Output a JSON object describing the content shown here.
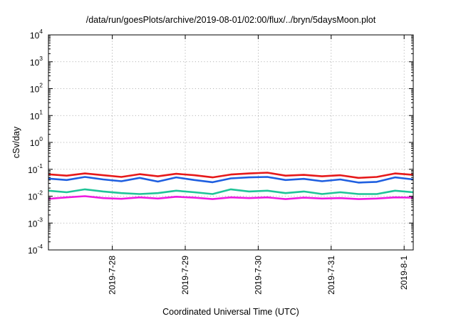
{
  "chart_data": {
    "type": "line",
    "title": "/data/run/goesPlots/archive/2019-08-01/02:00/flux/../bryn/5daysMoon.plot",
    "xlabel": "Coordinated Universal Time (UTC)",
    "ylabel": "cSv/day",
    "yscale": "log",
    "ylim": [
      0.0001,
      10000
    ],
    "xlim": [
      "2019-07-27 03:00",
      "2019-08-01 03:00"
    ],
    "grid": true,
    "legend": "none",
    "y_ticks": [
      {
        "value": 0.0001,
        "base": "10",
        "exp": "-4"
      },
      {
        "value": 0.001,
        "base": "10",
        "exp": "-3"
      },
      {
        "value": 0.01,
        "base": "10",
        "exp": "-2"
      },
      {
        "value": 0.1,
        "base": "10",
        "exp": "-1"
      },
      {
        "value": 1,
        "base": "10",
        "exp": "0"
      },
      {
        "value": 10,
        "base": "10",
        "exp": "1"
      },
      {
        "value": 100,
        "base": "10",
        "exp": "2"
      },
      {
        "value": 1000,
        "base": "10",
        "exp": "3"
      },
      {
        "value": 10000,
        "base": "10",
        "exp": "4"
      }
    ],
    "x_ticks": [
      {
        "value": "2019-07-28 00:00",
        "label": "2019-7-28"
      },
      {
        "value": "2019-07-29 00:00",
        "label": "2019-7-29"
      },
      {
        "value": "2019-07-30 00:00",
        "label": "2019-7-30"
      },
      {
        "value": "2019-07-31 00:00",
        "label": "2019-7-31"
      },
      {
        "value": "2019-08-01 00:00",
        "label": "2019-8-1"
      }
    ],
    "series": [
      {
        "color": "#e6191a",
        "x": [
          "2019-07-27 03:00",
          "2019-07-27 09:00",
          "2019-07-27 15:00",
          "2019-07-27 21:00",
          "2019-07-28 03:00",
          "2019-07-28 09:00",
          "2019-07-28 15:00",
          "2019-07-28 21:00",
          "2019-07-29 03:00",
          "2019-07-29 09:00",
          "2019-07-29 15:00",
          "2019-07-29 21:00",
          "2019-07-30 03:00",
          "2019-07-30 09:00",
          "2019-07-30 15:00",
          "2019-07-30 21:00",
          "2019-07-31 03:00",
          "2019-07-31 09:00",
          "2019-07-31 15:00",
          "2019-07-31 21:00",
          "2019-08-01 03:00"
        ],
        "values": [
          0.065,
          0.058,
          0.07,
          0.06,
          0.052,
          0.066,
          0.055,
          0.068,
          0.06,
          0.05,
          0.064,
          0.07,
          0.075,
          0.058,
          0.062,
          0.055,
          0.06,
          0.048,
          0.052,
          0.07,
          0.062
        ]
      },
      {
        "color": "#1f5fe0",
        "x": [
          "2019-07-27 03:00",
          "2019-07-27 09:00",
          "2019-07-27 15:00",
          "2019-07-27 21:00",
          "2019-07-28 03:00",
          "2019-07-28 09:00",
          "2019-07-28 15:00",
          "2019-07-28 21:00",
          "2019-07-29 03:00",
          "2019-07-29 09:00",
          "2019-07-29 15:00",
          "2019-07-29 21:00",
          "2019-07-30 03:00",
          "2019-07-30 09:00",
          "2019-07-30 15:00",
          "2019-07-30 21:00",
          "2019-07-31 03:00",
          "2019-07-31 09:00",
          "2019-07-31 15:00",
          "2019-07-31 21:00",
          "2019-08-01 03:00"
        ],
        "values": [
          0.045,
          0.04,
          0.052,
          0.042,
          0.036,
          0.048,
          0.035,
          0.05,
          0.04,
          0.033,
          0.046,
          0.05,
          0.052,
          0.04,
          0.044,
          0.036,
          0.042,
          0.032,
          0.034,
          0.05,
          0.042
        ]
      },
      {
        "color": "#1fc497",
        "x": [
          "2019-07-27 03:00",
          "2019-07-27 09:00",
          "2019-07-27 15:00",
          "2019-07-27 21:00",
          "2019-07-28 03:00",
          "2019-07-28 09:00",
          "2019-07-28 15:00",
          "2019-07-28 21:00",
          "2019-07-29 03:00",
          "2019-07-29 09:00",
          "2019-07-29 15:00",
          "2019-07-29 21:00",
          "2019-07-30 03:00",
          "2019-07-30 09:00",
          "2019-07-30 15:00",
          "2019-07-30 21:00",
          "2019-07-31 03:00",
          "2019-07-31 09:00",
          "2019-07-31 15:00",
          "2019-07-31 21:00",
          "2019-08-01 03:00"
        ],
        "values": [
          0.016,
          0.014,
          0.018,
          0.015,
          0.013,
          0.012,
          0.013,
          0.016,
          0.014,
          0.012,
          0.018,
          0.015,
          0.016,
          0.013,
          0.015,
          0.012,
          0.014,
          0.012,
          0.012,
          0.016,
          0.014
        ]
      },
      {
        "color": "#ee1ce0",
        "x": [
          "2019-07-27 03:00",
          "2019-07-27 09:00",
          "2019-07-27 15:00",
          "2019-07-27 21:00",
          "2019-07-28 03:00",
          "2019-07-28 09:00",
          "2019-07-28 15:00",
          "2019-07-28 21:00",
          "2019-07-29 03:00",
          "2019-07-29 09:00",
          "2019-07-29 15:00",
          "2019-07-29 21:00",
          "2019-07-30 03:00",
          "2019-07-30 09:00",
          "2019-07-30 15:00",
          "2019-07-30 21:00",
          "2019-07-31 03:00",
          "2019-07-31 09:00",
          "2019-07-31 15:00",
          "2019-07-31 21:00",
          "2019-08-01 03:00"
        ],
        "values": [
          0.008,
          0.009,
          0.01,
          0.0085,
          0.008,
          0.009,
          0.0082,
          0.0095,
          0.0088,
          0.0078,
          0.009,
          0.0085,
          0.009,
          0.0078,
          0.0088,
          0.0082,
          0.0085,
          0.0078,
          0.0082,
          0.009,
          0.0088
        ]
      }
    ]
  }
}
